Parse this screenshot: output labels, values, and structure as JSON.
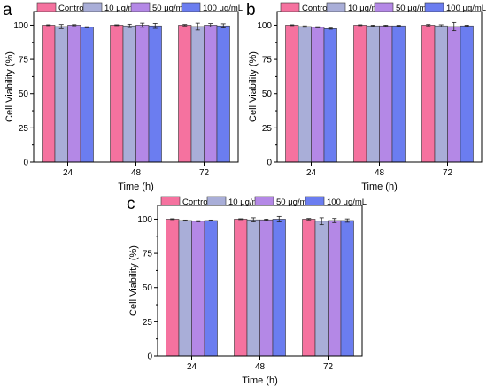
{
  "colors": {
    "Control": "#f5729f",
    "10 μg/mL": "#a9aed8",
    "50 μg/mL": "#b488e6",
    "100 μg/mL": "#6b7df0"
  },
  "chart_data": [
    {
      "panel_label": "a",
      "type": "bar",
      "xlabel": "Time (h)",
      "ylabel": "Cell Viability (%)",
      "ylim": [
        0,
        110
      ],
      "yticks": [
        0,
        25,
        50,
        75,
        100
      ],
      "categories": [
        "24",
        "48",
        "72"
      ],
      "legend": "top",
      "series": [
        {
          "name": "Control",
          "values": [
            100,
            100,
            100
          ],
          "errors": [
            0.3,
            0.3,
            0.5
          ]
        },
        {
          "name": "10 μg/mL",
          "values": [
            99,
            99.5,
            99
          ],
          "errors": [
            1.5,
            1.2,
            2.5
          ]
        },
        {
          "name": "50 μg/mL",
          "values": [
            100,
            100,
            100
          ],
          "errors": [
            0.4,
            1.5,
            1.2
          ]
        },
        {
          "name": "100 μg/mL",
          "values": [
            98.5,
            99.5,
            99.5
          ],
          "errors": [
            0.4,
            1.8,
            1.5
          ]
        }
      ]
    },
    {
      "panel_label": "b",
      "type": "bar",
      "xlabel": "Time (h)",
      "ylabel": "Cell Viability (%)",
      "ylim": [
        0,
        110
      ],
      "yticks": [
        0,
        25,
        50,
        75,
        100
      ],
      "categories": [
        "24",
        "48",
        "72"
      ],
      "legend": "top",
      "series": [
        {
          "name": "Control",
          "values": [
            100,
            100,
            100
          ],
          "errors": [
            0.3,
            0.3,
            0.5
          ]
        },
        {
          "name": "10 μg/mL",
          "values": [
            99,
            99.5,
            99.5
          ],
          "errors": [
            0.5,
            0.5,
            0.8
          ]
        },
        {
          "name": "50 μg/mL",
          "values": [
            98.5,
            99.5,
            99
          ],
          "errors": [
            0.4,
            0.5,
            3
          ]
        },
        {
          "name": "100 μg/mL",
          "values": [
            97.5,
            99.5,
            99.5
          ],
          "errors": [
            0.4,
            0.4,
            0.5
          ]
        }
      ]
    },
    {
      "panel_label": "c",
      "type": "bar",
      "xlabel": "Time (h)",
      "ylabel": "Cell Viability (%)",
      "ylim": [
        0,
        110
      ],
      "yticks": [
        0,
        25,
        50,
        75,
        100
      ],
      "categories": [
        "24",
        "48",
        "72"
      ],
      "legend": "top",
      "series": [
        {
          "name": "Control",
          "values": [
            100,
            100,
            100
          ],
          "errors": [
            0.3,
            0.3,
            0.5
          ]
        },
        {
          "name": "10 μg/mL",
          "values": [
            99,
            99.5,
            98.5
          ],
          "errors": [
            0.4,
            1.5,
            2.5
          ]
        },
        {
          "name": "50 μg/mL",
          "values": [
            98.5,
            99.5,
            99
          ],
          "errors": [
            0.4,
            0.5,
            1.5
          ]
        },
        {
          "name": "100 μg/mL",
          "values": [
            99,
            100,
            99
          ],
          "errors": [
            0.4,
            2,
            1.2
          ]
        }
      ]
    }
  ]
}
